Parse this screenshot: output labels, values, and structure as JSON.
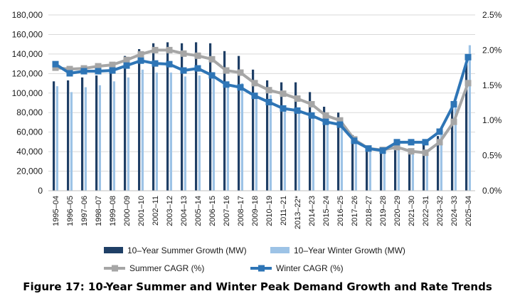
{
  "caption": "Figure 17: 10-Year Summer and Winter Peak Demand Growth and Rate Trends",
  "chart_data": {
    "type": "bar",
    "categories": [
      "1995–04",
      "1996–05",
      "1997–06",
      "1998–07",
      "1999–08",
      "2000–09",
      "2001–10",
      "2002–11",
      "2003–12",
      "2004–13",
      "2005–14",
      "2006–15",
      "2007–16",
      "2008–17",
      "2009–18",
      "2010–19",
      "2011–21",
      "2013–22*",
      "2014–23",
      "2015–24",
      "2016–25",
      "2017–26",
      "2018–27",
      "2019–28",
      "2020–29",
      "2021–30",
      "2022–31",
      "2023–32",
      "2024–33",
      "2025–34"
    ],
    "y_left": {
      "lim": [
        0,
        180000
      ],
      "ticks": [
        0,
        20000,
        40000,
        60000,
        80000,
        100000,
        120000,
        140000,
        160000,
        180000
      ],
      "tick_labels": [
        "0",
        "20,000",
        "40,000",
        "60,000",
        "80,000",
        "100,000",
        "120,000",
        "140,000",
        "160,000",
        "180,000"
      ]
    },
    "y_right": {
      "lim": [
        0,
        2.5
      ],
      "ticks": [
        0,
        0.5,
        1.0,
        1.5,
        2.0,
        2.5
      ],
      "tick_labels": [
        "0.0%",
        "0.5%",
        "1.0%",
        "1.5%",
        "2.0%",
        "2.5%"
      ]
    },
    "grid": true,
    "legend_position": "bottom",
    "bar_series": [
      {
        "name": "10–Year Summer Growth (MW)",
        "color": "#1f3f66",
        "axis": "left",
        "values": [
          112000,
          113000,
          116000,
          118000,
          123000,
          138000,
          145000,
          151000,
          152000,
          151000,
          152000,
          151000,
          143000,
          138000,
          124000,
          113000,
          111000,
          111000,
          101000,
          86000,
          80000,
          57000,
          43000,
          40000,
          46000,
          38000,
          48000,
          56000,
          85000,
          130000
        ]
      },
      {
        "name": "10–Year Winter Growth (MW)",
        "color": "#9dc3e6",
        "axis": "left",
        "values": [
          107000,
          101000,
          106000,
          108000,
          112000,
          116000,
          124000,
          121000,
          121000,
          117000,
          118000,
          117000,
          111000,
          110000,
          100000,
          98000,
          83000,
          82000,
          76000,
          70000,
          68000,
          55000,
          45000,
          42000,
          46000,
          41000,
          41000,
          57000,
          90000,
          149000
        ]
      }
    ],
    "line_series": [
      {
        "name": "Summer CAGR (%)",
        "color": "#a6a6a6",
        "axis": "right",
        "values": [
          1.75,
          1.73,
          1.74,
          1.77,
          1.79,
          1.86,
          1.94,
          2.0,
          2.0,
          1.95,
          1.92,
          1.87,
          1.71,
          1.68,
          1.53,
          1.43,
          1.38,
          1.31,
          1.23,
          1.07,
          1.0,
          0.73,
          0.6,
          0.58,
          0.62,
          0.56,
          0.54,
          0.69,
          0.98,
          1.53
        ]
      },
      {
        "name": "Winter CAGR (%)",
        "color": "#2e75b6",
        "axis": "right",
        "values": [
          1.8,
          1.67,
          1.7,
          1.7,
          1.71,
          1.78,
          1.85,
          1.81,
          1.8,
          1.71,
          1.74,
          1.64,
          1.51,
          1.47,
          1.35,
          1.26,
          1.17,
          1.14,
          1.07,
          0.98,
          0.94,
          0.71,
          0.6,
          0.57,
          0.69,
          0.69,
          0.69,
          0.84,
          1.23,
          1.9
        ]
      }
    ]
  }
}
